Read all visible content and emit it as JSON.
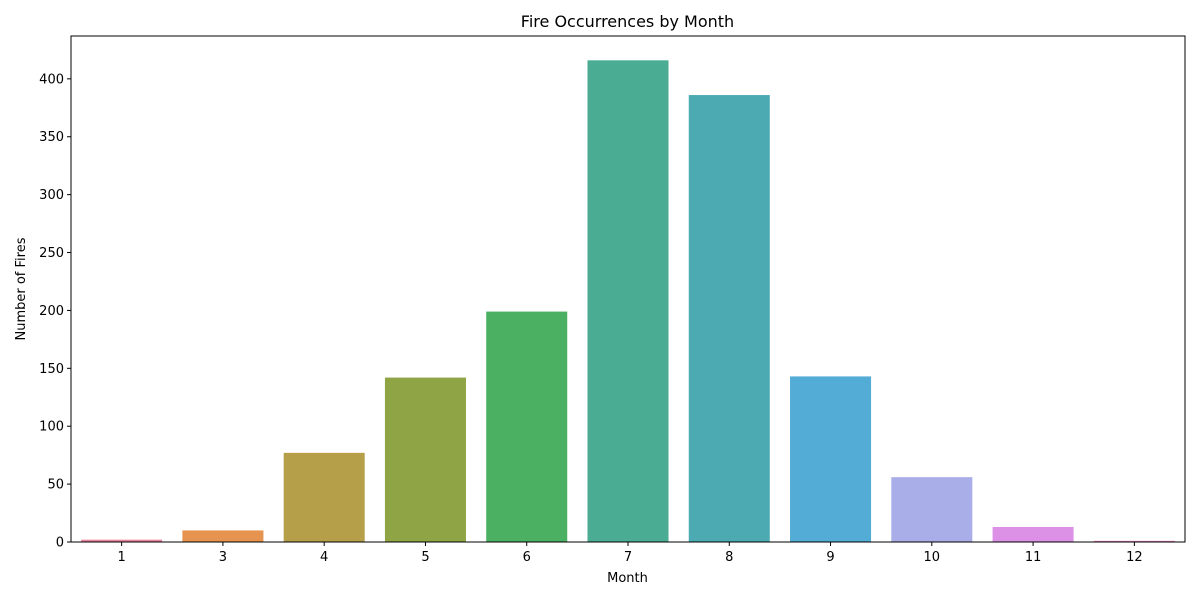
{
  "chart_data": {
    "type": "bar",
    "title": "Fire Occurrences by Month",
    "xlabel": "Month",
    "ylabel": "Number of Fires",
    "categories": [
      "1",
      "3",
      "4",
      "5",
      "6",
      "7",
      "8",
      "9",
      "10",
      "11",
      "12"
    ],
    "values": [
      2,
      10,
      77,
      142,
      199,
      416,
      386,
      143,
      56,
      13,
      1
    ],
    "colors": [
      "#e8829a",
      "#e5934f",
      "#b59f49",
      "#8ea445",
      "#4bb062",
      "#4aac93",
      "#4caab2",
      "#52acd5",
      "#aaaee8",
      "#dc90e6",
      "#e77fbd"
    ],
    "ylim": [
      0,
      437
    ],
    "yticks": [
      0,
      50,
      100,
      150,
      200,
      250,
      300,
      350,
      400
    ],
    "grid": false,
    "legend": "none"
  }
}
